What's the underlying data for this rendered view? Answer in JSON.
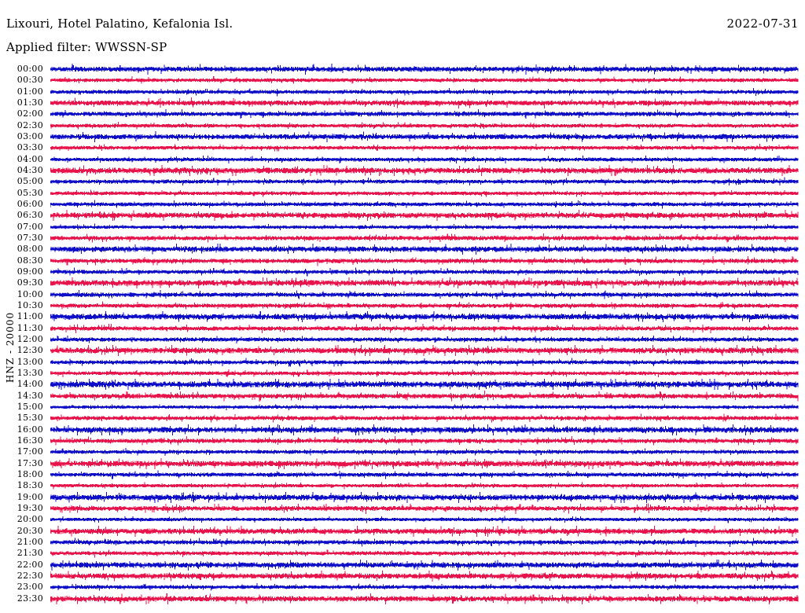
{
  "header": {
    "title": "Lixouri, Hotel Palatino, Kefalonia Isl.",
    "date": "2022-07-31",
    "filter": "Applied filter: WWSSN-SP"
  },
  "chart_data": {
    "type": "line",
    "subtype": "seismogram-helicorder",
    "title": "Lixouri, Hotel Palatino, Kefalonia Isl.",
    "date": "2022-07-31",
    "applied_filter": "WWSSN-SP",
    "ylabel": "HNZ - 20000",
    "channel": "HNZ",
    "scale": 20000,
    "minutes_per_line": 30,
    "legend_position": "none",
    "grid": false,
    "colors": {
      "even_rows_blue": "#0e0ec8",
      "odd_rows_red": "#e8134b"
    },
    "rows": [
      {
        "time": "00:00",
        "color": "blue",
        "amplitude": 2.2
      },
      {
        "time": "00:30",
        "color": "red",
        "amplitude": 1.4
      },
      {
        "time": "01:00",
        "color": "blue",
        "amplitude": 1.4
      },
      {
        "time": "01:30",
        "color": "red",
        "amplitude": 2.2
      },
      {
        "time": "02:00",
        "color": "blue",
        "amplitude": 1.8
      },
      {
        "time": "02:30",
        "color": "red",
        "amplitude": 1.4
      },
      {
        "time": "03:00",
        "color": "blue",
        "amplitude": 2.2
      },
      {
        "time": "03:30",
        "color": "red",
        "amplitude": 1.4
      },
      {
        "time": "04:00",
        "color": "blue",
        "amplitude": 1.4
      },
      {
        "time": "04:30",
        "color": "red",
        "amplitude": 2.6
      },
      {
        "time": "05:00",
        "color": "blue",
        "amplitude": 1.5
      },
      {
        "time": "05:30",
        "color": "red",
        "amplitude": 1.4
      },
      {
        "time": "06:00",
        "color": "blue",
        "amplitude": 1.5
      },
      {
        "time": "06:30",
        "color": "red",
        "amplitude": 2.4
      },
      {
        "time": "07:00",
        "color": "blue",
        "amplitude": 1.2
      },
      {
        "time": "07:30",
        "color": "red",
        "amplitude": 1.8
      },
      {
        "time": "08:00",
        "color": "blue",
        "amplitude": 2.4
      },
      {
        "time": "08:30",
        "color": "red",
        "amplitude": 1.8
      },
      {
        "time": "09:00",
        "color": "blue",
        "amplitude": 1.5
      },
      {
        "time": "09:30",
        "color": "red",
        "amplitude": 2.6
      },
      {
        "time": "10:00",
        "color": "blue",
        "amplitude": 1.8
      },
      {
        "time": "10:30",
        "color": "red",
        "amplitude": 1.6
      },
      {
        "time": "11:00",
        "color": "blue",
        "amplitude": 2.6
      },
      {
        "time": "11:30",
        "color": "red",
        "amplitude": 1.8
      },
      {
        "time": "12:00",
        "color": "blue",
        "amplitude": 1.6
      },
      {
        "time": "12:30",
        "color": "red",
        "amplitude": 2.6
      },
      {
        "time": "13:00",
        "color": "blue",
        "amplitude": 1.6
      },
      {
        "time": "13:30",
        "color": "red",
        "amplitude": 1.4
      },
      {
        "time": "14:00",
        "color": "blue",
        "amplitude": 2.8
      },
      {
        "time": "14:30",
        "color": "red",
        "amplitude": 2.0
      },
      {
        "time": "15:00",
        "color": "blue",
        "amplitude": 1.1
      },
      {
        "time": "15:30",
        "color": "red",
        "amplitude": 1.6
      },
      {
        "time": "16:00",
        "color": "blue",
        "amplitude": 2.6
      },
      {
        "time": "16:30",
        "color": "red",
        "amplitude": 1.8
      },
      {
        "time": "17:00",
        "color": "blue",
        "amplitude": 1.4
      },
      {
        "time": "17:30",
        "color": "red",
        "amplitude": 2.6
      },
      {
        "time": "18:00",
        "color": "blue",
        "amplitude": 1.6
      },
      {
        "time": "18:30",
        "color": "red",
        "amplitude": 1.3
      },
      {
        "time": "19:00",
        "color": "blue",
        "amplitude": 2.6
      },
      {
        "time": "19:30",
        "color": "red",
        "amplitude": 2.0
      },
      {
        "time": "20:00",
        "color": "blue",
        "amplitude": 1.2
      },
      {
        "time": "20:30",
        "color": "red",
        "amplitude": 2.4
      },
      {
        "time": "21:00",
        "color": "blue",
        "amplitude": 1.7
      },
      {
        "time": "21:30",
        "color": "red",
        "amplitude": 1.5
      },
      {
        "time": "22:00",
        "color": "blue",
        "amplitude": 2.4
      },
      {
        "time": "22:30",
        "color": "red",
        "amplitude": 2.4
      },
      {
        "time": "23:00",
        "color": "blue",
        "amplitude": 1.4
      },
      {
        "time": "23:30",
        "color": "red",
        "amplitude": 2.4
      }
    ]
  }
}
